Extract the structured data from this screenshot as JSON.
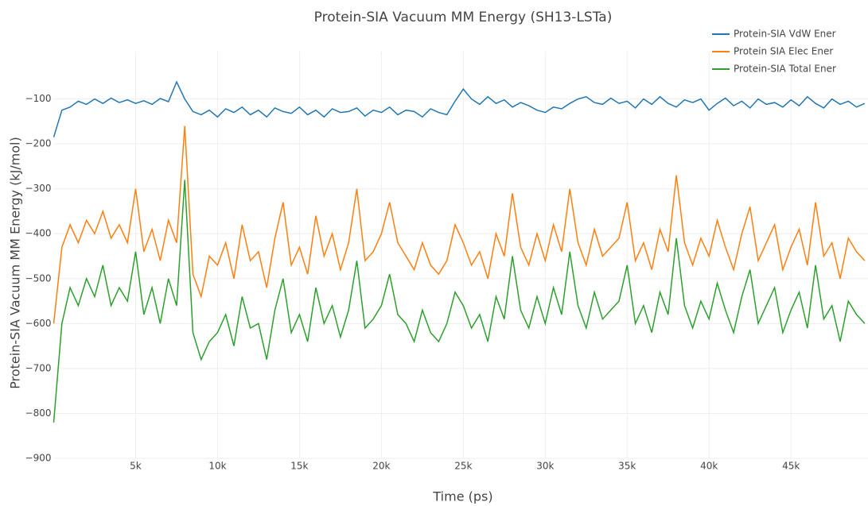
{
  "chart_data": {
    "type": "line",
    "title": "Protein-SIA Vacuum MM Energy (SH13-LSTa)",
    "x_label": "Time (ps)",
    "y_label": "Protein-SIA Vacuum MM Energy (kJ/mol)",
    "x": [
      0,
      500,
      1000,
      1500,
      2000,
      2500,
      3000,
      3500,
      4000,
      4500,
      5000,
      5500,
      6000,
      6500,
      7000,
      7500,
      8000,
      8500,
      9000,
      9500,
      10000,
      10500,
      11000,
      11500,
      12000,
      12500,
      13000,
      13500,
      14000,
      14500,
      15000,
      15500,
      16000,
      16500,
      17000,
      17500,
      18000,
      18500,
      19000,
      19500,
      20000,
      20500,
      21000,
      21500,
      22000,
      22500,
      23000,
      23500,
      24000,
      24500,
      25000,
      25500,
      26000,
      26500,
      27000,
      27500,
      28000,
      28500,
      29000,
      29500,
      30000,
      30500,
      31000,
      31500,
      32000,
      32500,
      33000,
      33500,
      34000,
      34500,
      35000,
      35500,
      36000,
      36500,
      37000,
      37500,
      38000,
      38500,
      39000,
      39500,
      40000,
      40500,
      41000,
      41500,
      42000,
      42500,
      43000,
      43500,
      44000,
      44500,
      45000,
      45500,
      46000,
      46500,
      47000,
      47500,
      48000,
      48500,
      49000,
      49500
    ],
    "series": [
      {
        "name": "Protein-SIA VdW Ener",
        "color": "#1f77b4",
        "values": [
          -185,
          -125,
          -118,
          -105,
          -112,
          -100,
          -110,
          -98,
          -108,
          -102,
          -110,
          -104,
          -112,
          -99,
          -106,
          -62,
          -100,
          -128,
          -135,
          -125,
          -140,
          -122,
          -130,
          -118,
          -135,
          -125,
          -140,
          -120,
          -128,
          -132,
          -118,
          -135,
          -125,
          -140,
          -122,
          -130,
          -128,
          -120,
          -138,
          -125,
          -130,
          -118,
          -135,
          -125,
          -128,
          -140,
          -122,
          -130,
          -135,
          -105,
          -78,
          -100,
          -112,
          -95,
          -110,
          -102,
          -118,
          -108,
          -115,
          -125,
          -130,
          -118,
          -122,
          -110,
          -100,
          -95,
          -108,
          -112,
          -98,
          -110,
          -105,
          -120,
          -100,
          -112,
          -95,
          -110,
          -118,
          -102,
          -108,
          -100,
          -125,
          -110,
          -98,
          -115,
          -105,
          -120,
          -100,
          -112,
          -108,
          -118,
          -102,
          -115,
          -95,
          -110,
          -120,
          -100,
          -112,
          -105,
          -118,
          -110
        ]
      },
      {
        "name": "Protein SIA Elec Ener",
        "color": "#ff7f0e",
        "values": [
          -600,
          -430,
          -380,
          -420,
          -370,
          -400,
          -350,
          -410,
          -380,
          -420,
          -300,
          -440,
          -390,
          -460,
          -370,
          -420,
          -160,
          -490,
          -540,
          -450,
          -470,
          -420,
          -500,
          -380,
          -460,
          -440,
          -520,
          -410,
          -330,
          -470,
          -430,
          -490,
          -360,
          -450,
          -400,
          -480,
          -420,
          -300,
          -460,
          -440,
          -400,
          -330,
          -420,
          -450,
          -480,
          -420,
          -470,
          -490,
          -460,
          -380,
          -420,
          -470,
          -440,
          -500,
          -400,
          -450,
          -310,
          -430,
          -470,
          -400,
          -460,
          -380,
          -440,
          -300,
          -420,
          -470,
          -390,
          -450,
          -430,
          -410,
          -330,
          -460,
          -420,
          -480,
          -390,
          -440,
          -270,
          -420,
          -470,
          -410,
          -450,
          -370,
          -430,
          -480,
          -400,
          -340,
          -460,
          -420,
          -380,
          -480,
          -430,
          -390,
          -470,
          -330,
          -450,
          -420,
          -500,
          -410,
          -440,
          -460
        ]
      },
      {
        "name": "Protein-SIA Total Ener",
        "color": "#2ca02c",
        "values": [
          -820,
          -600,
          -520,
          -560,
          -500,
          -540,
          -470,
          -560,
          -520,
          -550,
          -440,
          -580,
          -520,
          -600,
          -500,
          -560,
          -280,
          -620,
          -680,
          -640,
          -620,
          -580,
          -650,
          -540,
          -610,
          -600,
          -680,
          -570,
          -500,
          -620,
          -580,
          -640,
          -520,
          -600,
          -560,
          -630,
          -570,
          -460,
          -610,
          -590,
          -560,
          -490,
          -580,
          -600,
          -640,
          -570,
          -620,
          -640,
          -600,
          -530,
          -560,
          -610,
          -580,
          -640,
          -540,
          -590,
          -450,
          -570,
          -610,
          -540,
          -600,
          -520,
          -580,
          -440,
          -560,
          -610,
          -530,
          -590,
          -570,
          -550,
          -470,
          -600,
          -560,
          -620,
          -530,
          -580,
          -410,
          -560,
          -610,
          -550,
          -590,
          -510,
          -570,
          -620,
          -540,
          -480,
          -600,
          -560,
          -520,
          -620,
          -570,
          -530,
          -610,
          -470,
          -590,
          -560,
          -640,
          -550,
          -580,
          -600
        ]
      }
    ],
    "xlim": [
      0,
      49700
    ],
    "ylim": [
      -900,
      -30
    ],
    "xticks": [
      {
        "value": 5000,
        "label": "5k"
      },
      {
        "value": 10000,
        "label": "10k"
      },
      {
        "value": 15000,
        "label": "15k"
      },
      {
        "value": 20000,
        "label": "20k"
      },
      {
        "value": 25000,
        "label": "25k"
      },
      {
        "value": 30000,
        "label": "30k"
      },
      {
        "value": 35000,
        "label": "35k"
      },
      {
        "value": 40000,
        "label": "40k"
      },
      {
        "value": 45000,
        "label": "45k"
      }
    ],
    "yticks": [
      {
        "value": -100,
        "label": "−100"
      },
      {
        "value": -200,
        "label": "−200"
      },
      {
        "value": -300,
        "label": "−300"
      },
      {
        "value": -400,
        "label": "−400"
      },
      {
        "value": -500,
        "label": "−500"
      },
      {
        "value": -600,
        "label": "−600"
      },
      {
        "value": -700,
        "label": "−700"
      },
      {
        "value": -800,
        "label": "−800"
      },
      {
        "value": -900,
        "label": "−900"
      }
    ],
    "grid": true,
    "legend": "top right"
  }
}
